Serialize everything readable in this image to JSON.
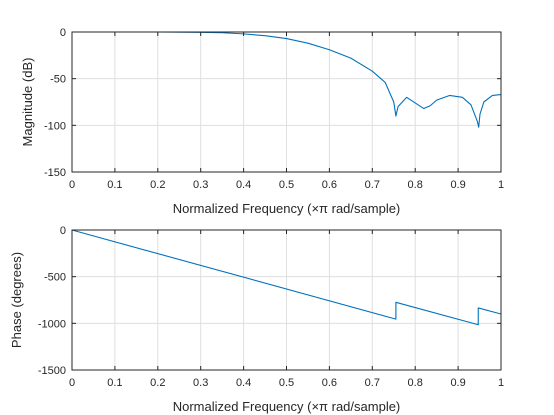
{
  "colors": {
    "line": "#0072BD",
    "grid": "#dfdfdf",
    "axis": "#262626",
    "background": "#ffffff"
  },
  "chart_data": [
    {
      "type": "line",
      "title": "",
      "xlabel": "Normalized Frequency  (×π rad/sample)",
      "ylabel": "Magnitude (dB)",
      "xlim": [
        0,
        1
      ],
      "ylim": [
        -150,
        0
      ],
      "xticks": [
        0,
        0.1,
        0.2,
        0.3,
        0.4,
        0.5,
        0.6,
        0.7,
        0.8,
        0.9,
        1
      ],
      "xticklabels": [
        "0",
        "0.1",
        "0.2",
        "0.3",
        "0.4",
        "0.5",
        "0.6",
        "0.7",
        "0.8",
        "0.9",
        "1"
      ],
      "yticks": [
        0,
        -50,
        -100,
        -150
      ],
      "yticklabels": [
        "0",
        "-50",
        "-100",
        "-150"
      ],
      "grid": true,
      "series": [
        {
          "x": [
            0,
            0.1,
            0.2,
            0.3,
            0.35,
            0.4,
            0.45,
            0.5,
            0.55,
            0.6,
            0.65,
            0.7,
            0.73,
            0.75,
            0.755,
            0.76,
            0.78,
            0.8,
            0.82,
            0.835,
            0.85,
            0.88,
            0.91,
            0.93,
            0.945,
            0.948,
            0.951,
            0.96,
            0.98,
            1.0
          ],
          "y": [
            0,
            0,
            0,
            -0.3,
            -0.8,
            -2,
            -4,
            -7,
            -12,
            -19,
            -28,
            -42,
            -54,
            -75,
            -90,
            -80,
            -70,
            -76,
            -82,
            -79,
            -73,
            -68,
            -70,
            -78,
            -96,
            -102,
            -88,
            -75,
            -68,
            -67
          ]
        }
      ]
    },
    {
      "type": "line",
      "title": "",
      "xlabel": "Normalized Frequency  (×π rad/sample)",
      "ylabel": "Phase (degrees)",
      "xlim": [
        0,
        1
      ],
      "ylim": [
        -1500,
        0
      ],
      "xticks": [
        0,
        0.1,
        0.2,
        0.3,
        0.4,
        0.5,
        0.6,
        0.7,
        0.8,
        0.9,
        1
      ],
      "xticklabels": [
        "0",
        "0.1",
        "0.2",
        "0.3",
        "0.4",
        "0.5",
        "0.6",
        "0.7",
        "0.8",
        "0.9",
        "1"
      ],
      "yticks": [
        0,
        -500,
        -1000,
        -1500
      ],
      "yticklabels": [
        "0",
        "-500",
        "-1000",
        "-1500"
      ],
      "grid": true,
      "series": [
        {
          "x": [
            0,
            0.755,
            0.755,
            0.947,
            0.947,
            1.0
          ],
          "y": [
            0,
            -955,
            -775,
            -1015,
            -835,
            -900
          ]
        }
      ]
    }
  ]
}
